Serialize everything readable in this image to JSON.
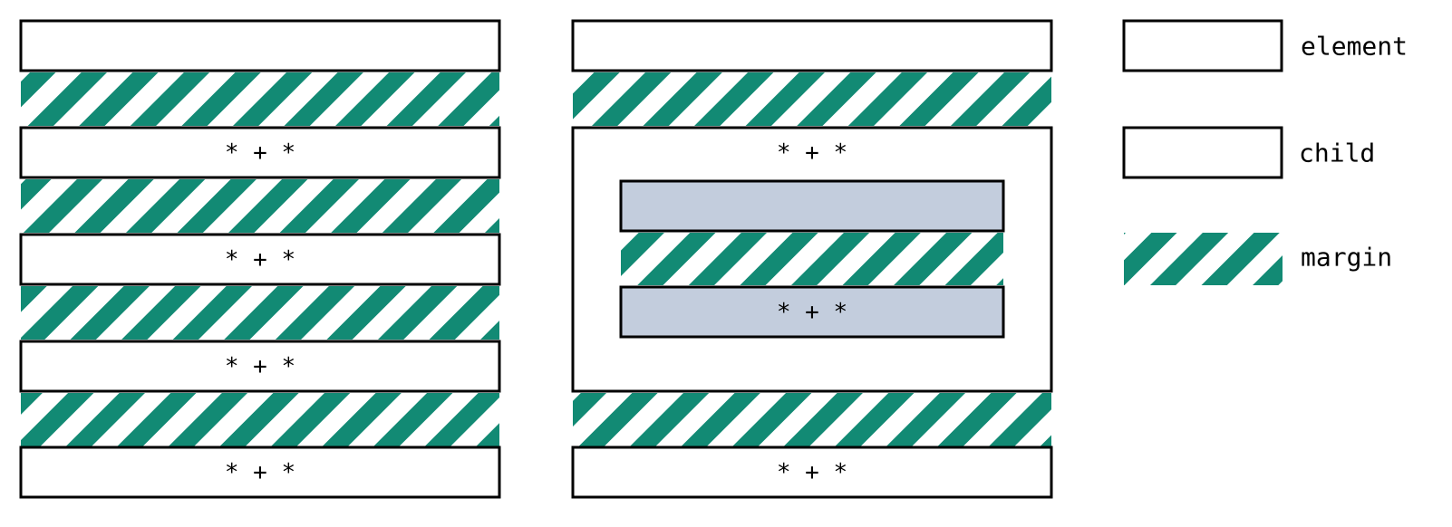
{
  "colors": {
    "margin_stripe": "#128a74",
    "element_fill": "#ffffff",
    "child_fill": "#c3cddd",
    "outline": "#000000"
  },
  "selector": "* + *",
  "legend": {
    "element_label": "element",
    "child_label": "child",
    "margin_label": "margin"
  }
}
